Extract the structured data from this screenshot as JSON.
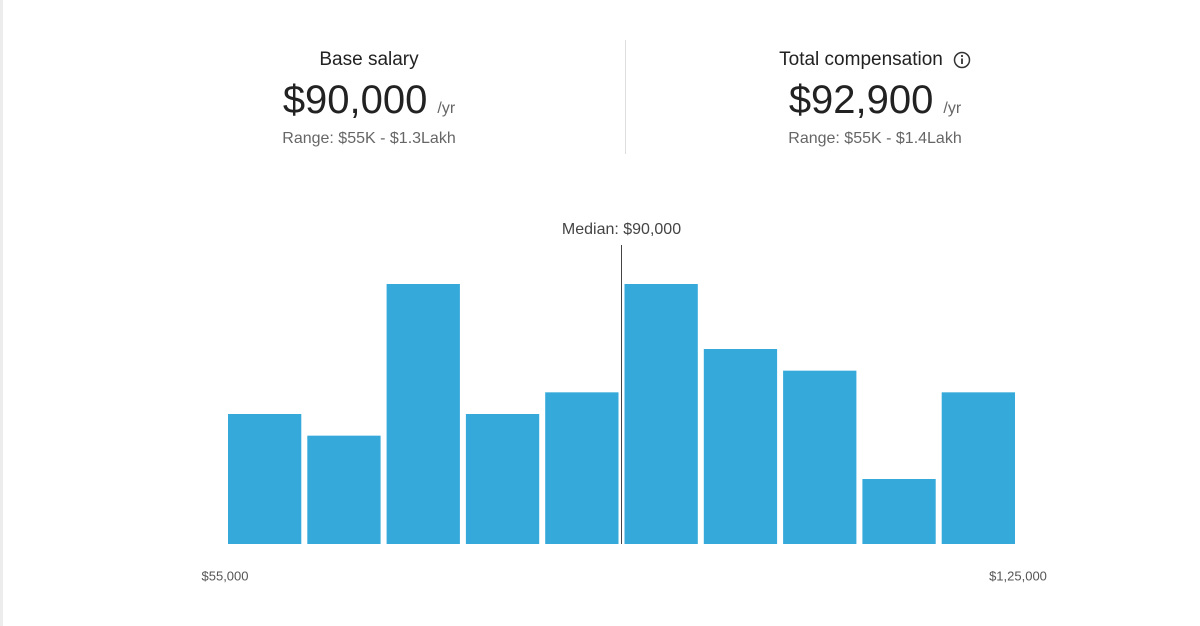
{
  "base_salary": {
    "title": "Base salary",
    "amount": "$90,000",
    "unit": "/yr",
    "range": "Range: $55K - $1.3Lakh"
  },
  "total_compensation": {
    "title": "Total compensation",
    "amount": "$92,900",
    "unit": "/yr",
    "range": "Range: $55K - $1.4Lakh"
  },
  "chart_data": {
    "type": "histogram",
    "bins": [
      55000,
      62000,
      69000,
      76000,
      83000,
      90000,
      97000,
      104000,
      111000,
      118000,
      125000
    ],
    "values": [
      6,
      5,
      12,
      6,
      7,
      12,
      9,
      8,
      3,
      7
    ],
    "color": "#35a9da",
    "xlim": [
      55000,
      125000
    ],
    "xticks": [
      {
        "value": 55000,
        "label": "$55,000"
      },
      {
        "value": 125000,
        "label": "$1,25,000"
      }
    ],
    "ylim": [
      0,
      12
    ],
    "median": {
      "value": 90000,
      "label": "Median: $90,000"
    }
  }
}
